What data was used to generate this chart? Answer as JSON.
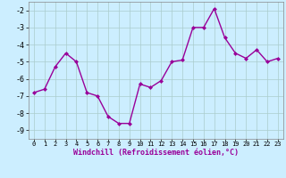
{
  "x": [
    0,
    1,
    2,
    3,
    4,
    5,
    6,
    7,
    8,
    9,
    10,
    11,
    12,
    13,
    14,
    15,
    16,
    17,
    18,
    19,
    20,
    21,
    22,
    23
  ],
  "y": [
    -6.8,
    -6.6,
    -5.3,
    -4.5,
    -5.0,
    -6.8,
    -7.0,
    -8.2,
    -8.6,
    -8.6,
    -6.3,
    -6.5,
    -6.1,
    -5.0,
    -4.9,
    -3.0,
    -3.0,
    -1.9,
    -3.6,
    -4.5,
    -4.8,
    -4.3,
    -5.0,
    -4.8
  ],
  "line_color": "#990099",
  "marker_color": "#990099",
  "bg_color": "#cceeff",
  "grid_color": "#aacccc",
  "xlabel": "Windchill (Refroidissement éolien,°C)",
  "xlabel_color": "#990099",
  "xlim": [
    -0.5,
    23.5
  ],
  "ylim": [
    -9.5,
    -1.5
  ],
  "yticks": [
    -9,
    -8,
    -7,
    -6,
    -5,
    -4,
    -3,
    -2
  ],
  "xticks": [
    0,
    1,
    2,
    3,
    4,
    5,
    6,
    7,
    8,
    9,
    10,
    11,
    12,
    13,
    14,
    15,
    16,
    17,
    18,
    19,
    20,
    21,
    22,
    23
  ],
  "marker_size": 2.5,
  "line_width": 1.0,
  "xlabel_fontsize": 6.0,
  "xtick_fontsize": 5.0,
  "ytick_fontsize": 6.0
}
